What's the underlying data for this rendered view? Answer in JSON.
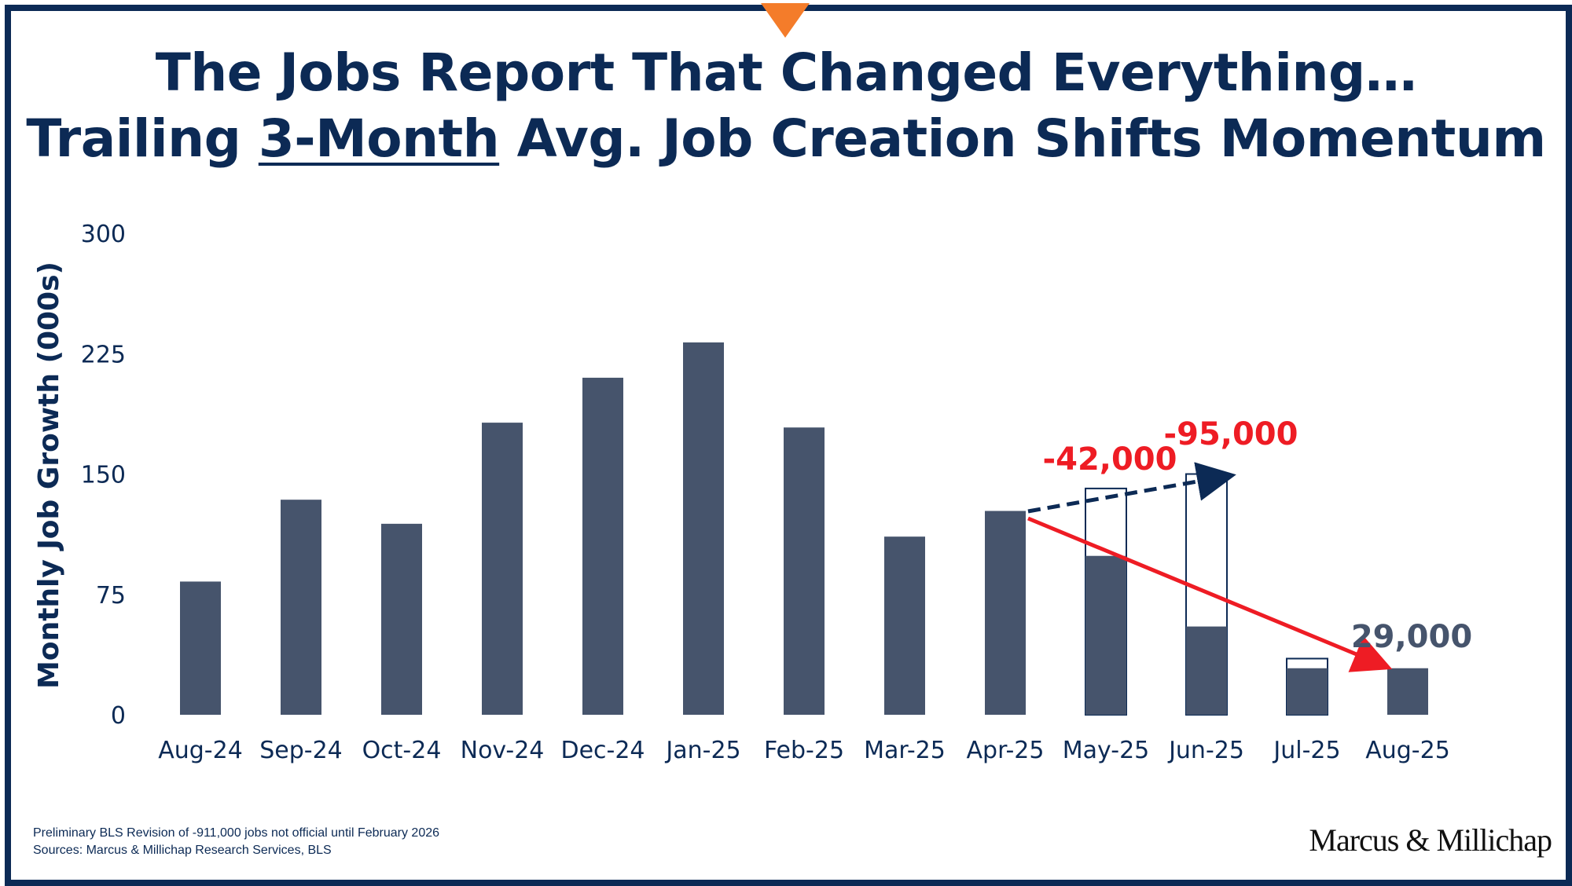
{
  "header": {
    "title_line1": "The Jobs Report That Changed Everything…",
    "title_line2_pre": "Trailing ",
    "title_line2_underlined": "3-Month",
    "title_line2_post": " Avg. Job Creation Shifts Momentum"
  },
  "chart_data": {
    "type": "bar",
    "ylabel": "Monthly Job Growth (000s)",
    "xlabel": "",
    "ylim": [
      0,
      300
    ],
    "yticks": [
      "0",
      "75",
      "150",
      "225",
      "300"
    ],
    "categories": [
      "Aug-24",
      "Sep-24",
      "Oct-24",
      "Nov-24",
      "Dec-24",
      "Jan-25",
      "Feb-25",
      "Mar-25",
      "Apr-25",
      "May-25",
      "Jun-25",
      "Jul-25",
      "Aug-25"
    ],
    "series": [
      {
        "values": [
          83,
          134,
          119,
          182,
          210,
          232,
          179,
          111,
          127,
          99,
          55,
          29,
          29
        ]
      }
    ],
    "prior_estimates": [
      null,
      null,
      null,
      null,
      null,
      null,
      null,
      null,
      null,
      141,
      150,
      35,
      null
    ],
    "grid": false,
    "legend": "none",
    "annotations": [
      {
        "text": "-42,000",
        "color": "#ee1c24"
      },
      {
        "text": "-95,000",
        "color": "#ee1c24"
      },
      {
        "text": "29,000",
        "color": "#46546c"
      }
    ],
    "colors": {
      "bar": "#46546c",
      "outline": "#0c2a55",
      "trend_down": "#ee1c24",
      "trend_prior": "#0c2a55"
    }
  },
  "footer": {
    "note": "Preliminary BLS Revision  of -911,000 jobs not official until February 2026",
    "sources": "Sources: Marcus & Millichap Research Services, BLS",
    "logo": "Marcus & Millichap"
  },
  "colors": {
    "frame": "#0c2a55",
    "accent": "#f47c2a",
    "title": "#0c2a55"
  }
}
